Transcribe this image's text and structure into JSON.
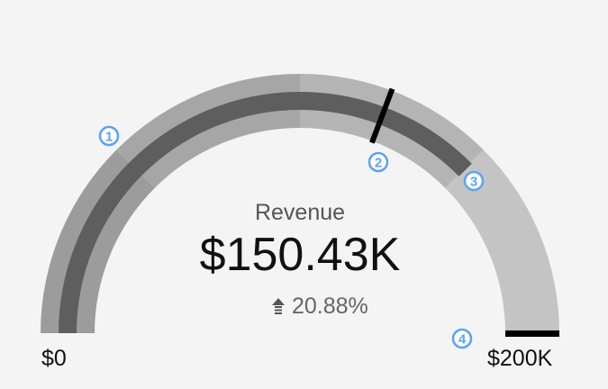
{
  "chart_data": {
    "type": "gauge",
    "title": "Revenue",
    "value": 150430,
    "value_label": "$150.43K",
    "min": 0,
    "max": 200000,
    "min_label": "$0",
    "max_label": "$200K",
    "change": {
      "label": "20.88%",
      "direction": "up",
      "icon": "arrow-up-icon"
    },
    "target": 123000,
    "max_marker": 200000,
    "ranges": [
      {
        "from": 0,
        "to": 50000,
        "color": "#9c9c9c"
      },
      {
        "from": 50000,
        "to": 100000,
        "color": "#a6a6a6"
      },
      {
        "from": 100000,
        "to": 150000,
        "color": "#b4b4b4"
      },
      {
        "from": 150000,
        "to": 200000,
        "color": "#c4c4c4"
      }
    ],
    "value_color": "#5e5e5e",
    "annotations": [
      {
        "label": "1",
        "at": 50000
      },
      {
        "label": "2",
        "at": 123000
      },
      {
        "label": "3",
        "at": 150000
      },
      {
        "label": "4",
        "at": 200000
      }
    ],
    "annotation_color": "#5aa2f5"
  }
}
